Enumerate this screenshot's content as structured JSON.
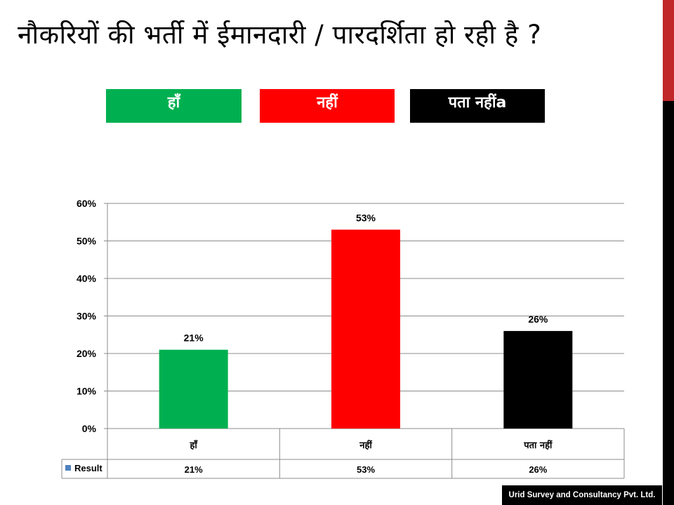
{
  "slide": {
    "title": "नौकरियों की भर्ती में ईमानदारी / पारदर्शिता हो रही है ?",
    "footer": "Urid Survey and Consultancy Pvt. Ltd."
  },
  "legend_boxes": [
    {
      "label": "हाँ",
      "color": "#00b050"
    },
    {
      "label": "नहीं",
      "color": "#ff0000"
    },
    {
      "label": "पता नहींa",
      "color": "#000000"
    }
  ],
  "chart_data": {
    "type": "bar",
    "categories": [
      "हाँ",
      "नहीं",
      "पता नहीं"
    ],
    "series": [
      {
        "name": "Result",
        "values": [
          21,
          53,
          26
        ]
      }
    ],
    "data_labels": [
      "21%",
      "53%",
      "26%"
    ],
    "bar_colors": [
      "#00b050",
      "#ff0000",
      "#000000"
    ],
    "legend_marker_color": "#4f81bd",
    "ylim": [
      0,
      60
    ],
    "yticks": [
      0,
      10,
      20,
      30,
      40,
      50,
      60
    ],
    "ytick_labels": [
      "0%",
      "10%",
      "20%",
      "30%",
      "40%",
      "50%",
      "60%"
    ],
    "grid": true,
    "data_table": true
  }
}
